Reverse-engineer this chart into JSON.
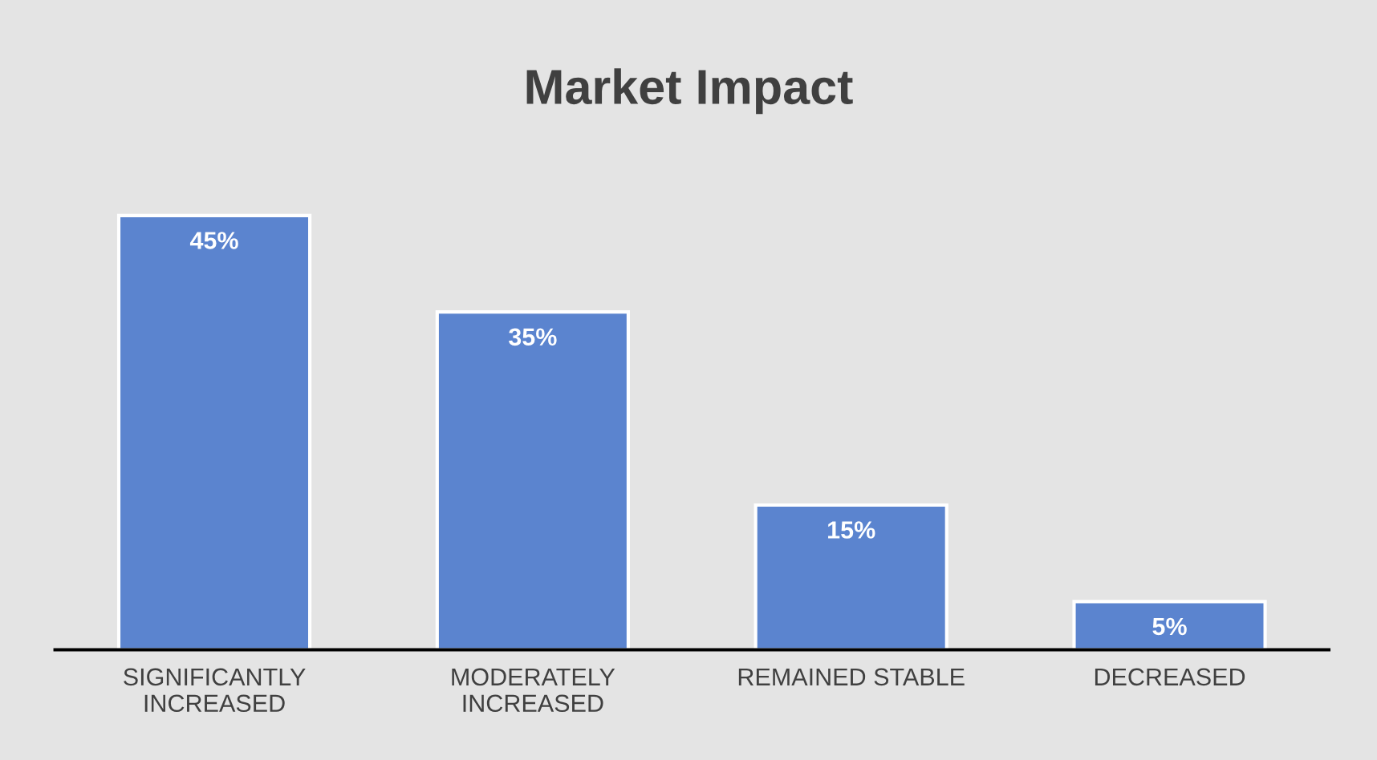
{
  "chart_data": {
    "type": "bar",
    "title": "Market Impact",
    "categories": [
      "SIGNIFICANTLY\nINCREASED",
      "MODERATELY\nINCREASED",
      "REMAINED STABLE",
      "DECREASED"
    ],
    "values": [
      45,
      35,
      15,
      5
    ],
    "value_labels": [
      "45%",
      "35%",
      "15%",
      "5%"
    ],
    "color": "#5b84cf",
    "grid": false,
    "legend": false
  }
}
